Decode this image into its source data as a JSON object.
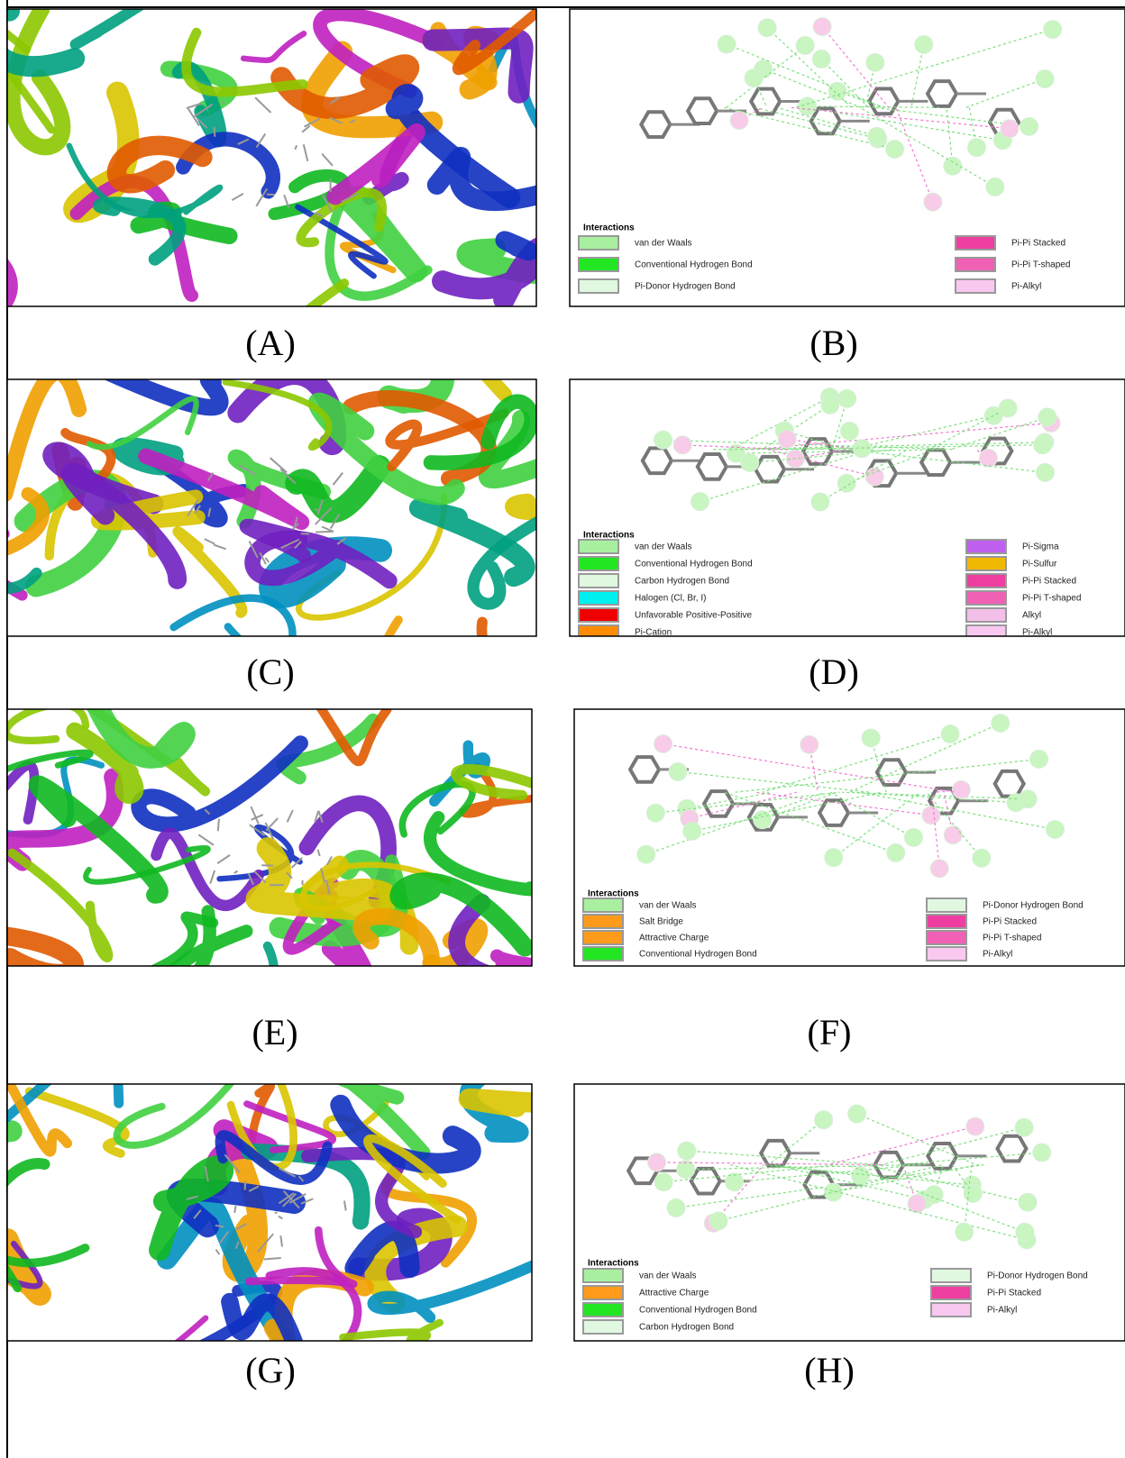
{
  "panels": [
    {
      "label": "(A)"
    },
    {
      "label": "(B)",
      "legend_title": "Interactions",
      "legend_left": [
        {
          "label": "van der Waals",
          "color": "#a8f0a0"
        },
        {
          "label": "Conventional Hydrogen Bond",
          "color": "#22e622"
        },
        {
          "label": "Pi-Donor Hydrogen Bond",
          "color": "#e0f8e0"
        }
      ],
      "legend_right": [
        {
          "label": "Pi-Pi Stacked",
          "color": "#ee3fa0"
        },
        {
          "label": "Pi-Pi T-shaped",
          "color": "#f060b4"
        },
        {
          "label": "Pi-Alkyl",
          "color": "#f8c8f0"
        }
      ]
    },
    {
      "label": "(C)"
    },
    {
      "label": "(D)",
      "legend_title": "Interactions",
      "legend_left": [
        {
          "label": "van der Waals",
          "color": "#a8f0a0"
        },
        {
          "label": "Conventional Hydrogen Bond",
          "color": "#22e622"
        },
        {
          "label": "Carbon Hydrogen Bond",
          "color": "#e0f8e0"
        },
        {
          "label": "Halogen (Cl, Br, I)",
          "color": "#00f0f0"
        },
        {
          "label": "Unfavorable Positive-Positive",
          "color": "#ee0000"
        },
        {
          "label": "Pi-Cation",
          "color": "#ff8c00"
        }
      ],
      "legend_right": [
        {
          "label": "Pi-Sigma",
          "color": "#c060f0"
        },
        {
          "label": "Pi-Sulfur",
          "color": "#f0b800"
        },
        {
          "label": "Pi-Pi Stacked",
          "color": "#ee3fa0"
        },
        {
          "label": "Pi-Pi T-shaped",
          "color": "#f060b4"
        },
        {
          "label": "Alkyl",
          "color": "#f2bfe8"
        },
        {
          "label": "Pi-Alkyl",
          "color": "#f8c8f0"
        }
      ]
    },
    {
      "label": "(E)"
    },
    {
      "label": "(F)",
      "legend_title": "Interactions",
      "legend_left": [
        {
          "label": "van der Waals",
          "color": "#a8f0a0"
        },
        {
          "label": "Salt Bridge",
          "color": "#ff9a1a"
        },
        {
          "label": "Attractive Charge",
          "color": "#ff9a1a"
        },
        {
          "label": "Conventional Hydrogen Bond",
          "color": "#22e622"
        }
      ],
      "legend_right": [
        {
          "label": "Pi-Donor Hydrogen Bond",
          "color": "#e0f8e0"
        },
        {
          "label": "Pi-Pi Stacked",
          "color": "#ee3fa0"
        },
        {
          "label": "Pi-Pi T-shaped",
          "color": "#f060b4"
        },
        {
          "label": "Pi-Alkyl",
          "color": "#f8c8f0"
        }
      ]
    },
    {
      "label": "(G)"
    },
    {
      "label": "(H)",
      "legend_title": "Interactions",
      "legend_left": [
        {
          "label": "van der Waals",
          "color": "#a8f0a0"
        },
        {
          "label": "Attractive Charge",
          "color": "#ff9a1a"
        },
        {
          "label": "Conventional Hydrogen Bond",
          "color": "#22e622"
        },
        {
          "label": "Carbon Hydrogen Bond",
          "color": "#e0f8e0"
        }
      ],
      "legend_right": [
        {
          "label": "Pi-Donor Hydrogen Bond",
          "color": "#e0f8e0"
        },
        {
          "label": "Pi-Pi Stacked",
          "color": "#ee3fa0"
        },
        {
          "label": "Pi-Alkyl",
          "color": "#f8c8f0"
        }
      ]
    }
  ]
}
